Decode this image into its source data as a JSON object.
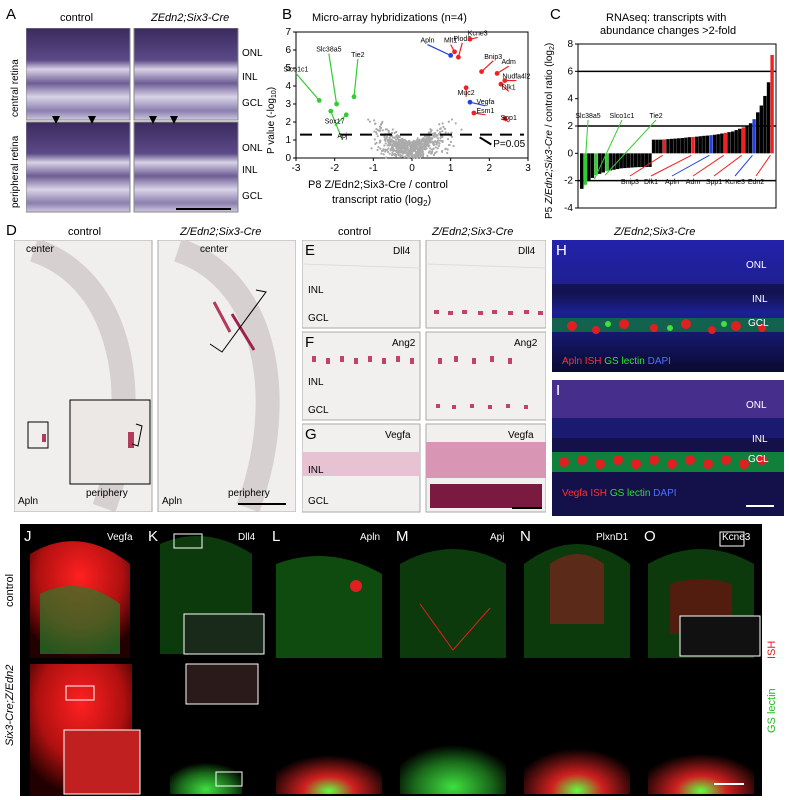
{
  "panel_letters": {
    "A": "A",
    "B": "B",
    "C": "C",
    "D": "D",
    "E": "E",
    "F": "F",
    "G": "G",
    "H": "H",
    "I": "I",
    "J": "J",
    "K": "K",
    "L": "L",
    "M": "M",
    "N": "N",
    "O": "O"
  },
  "panelA": {
    "col_control": "control",
    "col_mutant": "ZEdn2;Six3-Cre",
    "row_central": "central retina",
    "row_peripheral": "peripheral retina",
    "layers_top": [
      "ONL",
      "INL",
      "GCL"
    ],
    "layers_bottom": [
      "ONL",
      "INL",
      "GCL"
    ]
  },
  "panelB": {
    "title": "Micro-array hybridizations (n=4)",
    "ylabel": "P value (-log",
    "ylabel_sub": "10",
    "xlabel_line1": "P8 Z/Edn2;Six3-Cre / control",
    "xlabel_line2": "transcript ratio (log",
    "xlabel_sub": "2",
    "threshold_label": "P=0.05",
    "xticks": [
      "-3",
      "-2",
      "-1",
      "0",
      "1",
      "2",
      "3"
    ],
    "yticks": [
      "0",
      "1",
      "2",
      "3",
      "4",
      "5",
      "6",
      "7"
    ],
    "gene_labels": [
      "Slco1c1",
      "Slc38a5",
      "Tie2",
      "Apj",
      "Sox17",
      "Apln",
      "Mlt1",
      "Plod2",
      "Kcne3",
      "Bnip3",
      "Adm",
      "Nudfa4l2",
      "Dlk1",
      "Muc2",
      "Vegfa",
      "Esm1",
      "Spp1"
    ],
    "colors": {
      "green": "#33cc33",
      "blue": "#2244dd",
      "red": "#ee2222",
      "grey": "#aaaaaa"
    }
  },
  "panelC": {
    "title_line1": "RNAseq: transcripts with",
    "title_line2": "abundance changes >2-fold",
    "ylabel_1": "P5",
    "ylabel_2": "Z/Edn2;Six3-Cre",
    "ylabel_3": "/ control",
    "ylabel_4": "ratio (log",
    "ylabel_sub": "2",
    "yticks": [
      "8",
      "6",
      "4",
      "2",
      "0",
      "-2",
      "-4"
    ],
    "labels_top": [
      "Slc38a5",
      "Slco1c1",
      "Tie2"
    ],
    "labels_bottom": [
      "Bnip3",
      "Dlk1",
      "Apln",
      "Adm",
      "Spp1",
      "Kcne3",
      "Edn2"
    ]
  },
  "chart_data": [
    {
      "type": "scatter",
      "title": "Micro-array hybridizations (n=4)",
      "xlabel": "P8 Z/Edn2;Six3-Cre / control transcript ratio (log2)",
      "ylabel": "P value (-log10)",
      "xlim": [
        -3,
        3
      ],
      "ylim": [
        0,
        7
      ],
      "threshold_y": 1.3,
      "series": [
        {
          "name": "",
          "color": "green",
          "points": [
            {
              "label": "Slco1c1",
              "x": -2.4,
              "y": 3.2
            },
            {
              "label": "Slc38a5",
              "x": -1.95,
              "y": 3.0
            },
            {
              "label": "Tie2",
              "x": -1.5,
              "y": 3.4
            },
            {
              "label": "Apj",
              "x": -2.1,
              "y": 2.6
            },
            {
              "label": "Sox17",
              "x": -1.7,
              "y": 2.4
            }
          ]
        },
        {
          "name": "",
          "color": "blue",
          "points": [
            {
              "label": "Apln",
              "x": 1.0,
              "y": 5.7
            },
            {
              "label": "Vegfa",
              "x": 1.5,
              "y": 3.1
            }
          ]
        },
        {
          "name": "",
          "color": "red",
          "points": [
            {
              "label": "Mlt1",
              "x": 1.1,
              "y": 5.9
            },
            {
              "label": "Plod2",
              "x": 1.2,
              "y": 5.6
            },
            {
              "label": "Kcne3",
              "x": 1.5,
              "y": 6.6
            },
            {
              "label": "Bnip3",
              "x": 1.8,
              "y": 4.8
            },
            {
              "label": "Adm",
              "x": 2.2,
              "y": 4.7
            },
            {
              "label": "Nudfa4l2",
              "x": 2.4,
              "y": 4.3
            },
            {
              "label": "Dlk1",
              "x": 2.3,
              "y": 4.1
            },
            {
              "label": "Muc2",
              "x": 1.4,
              "y": 3.9
            },
            {
              "label": "Esm1",
              "x": 1.6,
              "y": 2.5
            },
            {
              "label": "Spp1",
              "x": 2.4,
              "y": 2.2
            }
          ]
        }
      ]
    },
    {
      "type": "bar",
      "title": "RNAseq: transcripts with abundance changes >2-fold",
      "ylabel": "P5 Z/Edn2;Six3-Cre / control ratio (log2)",
      "ylim": [
        -4,
        8
      ],
      "values": [
        -2.6,
        -2.3,
        -2.0,
        -1.8,
        -1.6,
        -1.5,
        -1.4,
        -1.3,
        -1.25,
        -1.2,
        -1.15,
        -1.1,
        -1.08,
        -1.06,
        -1.04,
        -1.02,
        -1.01,
        -1.0,
        -1.0,
        -1.0,
        1.0,
        1.0,
        1.0,
        1.02,
        1.04,
        1.06,
        1.08,
        1.1,
        1.12,
        1.15,
        1.18,
        1.2,
        1.22,
        1.25,
        1.28,
        1.3,
        1.33,
        1.36,
        1.4,
        1.45,
        1.5,
        1.55,
        1.6,
        1.7,
        1.8,
        1.9,
        2.0,
        2.2,
        2.5,
        3.0,
        3.5,
        4.2,
        5.2,
        7.2
      ],
      "highlight": [
        {
          "label": "Slc38a5",
          "index": 1,
          "color": "green"
        },
        {
          "label": "Slco1c1",
          "index": 4,
          "color": "green"
        },
        {
          "label": "Tie2",
          "index": 7,
          "color": "green"
        },
        {
          "label": "Bnip3",
          "index": 23,
          "color": "red"
        },
        {
          "label": "Dlk1",
          "index": 31,
          "color": "red"
        },
        {
          "label": "Apln",
          "index": 36,
          "color": "blue"
        },
        {
          "label": "Adm",
          "index": 40,
          "color": "red"
        },
        {
          "label": "Spp1",
          "index": 45,
          "color": "red"
        },
        {
          "label": "Kcne3",
          "index": 48,
          "color": "blue"
        },
        {
          "label": "Edn2",
          "index": 53,
          "color": "red"
        }
      ]
    }
  ],
  "panelD": {
    "col_control": "control",
    "col_mutant": "Z/Edn2;Six3-Cre",
    "center": "center",
    "periphery": "periphery",
    "probe": "Apln"
  },
  "panelEFG": {
    "col_control": "control",
    "col_mutant": "Z/Edn2;Six3-Cre",
    "E_probe": "Dll4",
    "F_probe": "Ang2",
    "G_probe": "Vegfa",
    "inl": "INL",
    "gcl": "GCL"
  },
  "panelHI": {
    "col_mutant": "Z/Edn2;Six3-Cre",
    "onl": "ONL",
    "inl": "INL",
    "gcl": "GCL",
    "H_legend": [
      "Apln ISH",
      "GS lectin",
      "DAPI"
    ],
    "I_legend": [
      "Vegfa ISH",
      "GS lectin",
      "DAPI"
    ]
  },
  "panelJO": {
    "row_control": "control",
    "row_mutant": "Six3-Cre;Z/Edn2",
    "probes": [
      "Vegfa",
      "Dll4",
      "Apln",
      "Apj",
      "PlxnD1",
      "Kcne3"
    ],
    "side_label_ish": "ISH",
    "side_label_gs": "GS lectin"
  }
}
